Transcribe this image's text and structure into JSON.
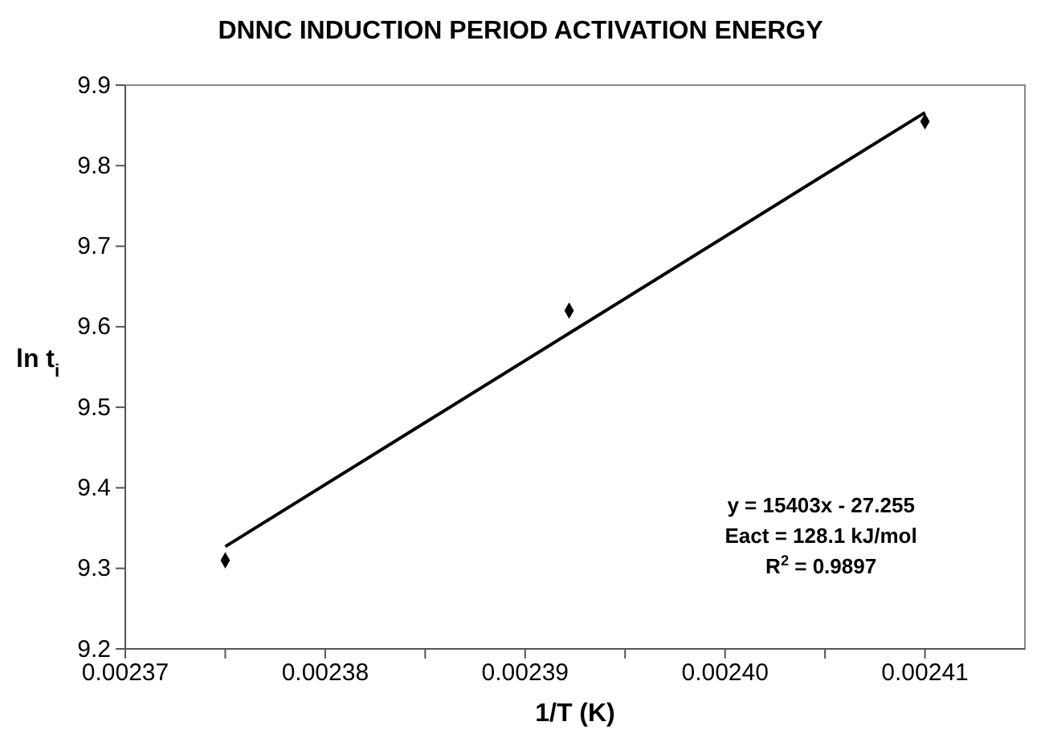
{
  "chart_data": {
    "type": "scatter",
    "title": "DNNC INDUCTION PERIOD ACTIVATION ENERGY",
    "xlabel": "1/T (K)",
    "ylabel": "ln t$_{i}$",
    "series": [
      {
        "type": "scatter",
        "color": "#000000",
        "marker": "diamond",
        "x": [
          0.002375,
          0.0023922,
          0.00241
        ],
        "values": [
          9.31,
          9.62,
          9.855
        ]
      },
      {
        "type": "line",
        "color": "#000000",
        "marker": "none",
        "x": [
          0.002375,
          0.00241
        ],
        "values": [
          9.327,
          9.866
        ]
      }
    ],
    "xlim": [
      0.00237,
      0.002415
    ],
    "xticks": [
      {
        "value": 0.00237,
        "label": "0.00237"
      },
      {
        "value": 0.002375,
        "label": null
      },
      {
        "value": 0.00238,
        "label": "0.00238"
      },
      {
        "value": 0.002385,
        "label": null
      },
      {
        "value": 0.00239,
        "label": "0.00239"
      },
      {
        "value": 0.002395,
        "label": null
      },
      {
        "value": 0.0024,
        "label": "0.00240"
      },
      {
        "value": 0.002405,
        "label": null
      },
      {
        "value": 0.00241,
        "label": "0.00241"
      }
    ],
    "ylim": [
      9.2,
      9.9
    ],
    "yticks": [
      {
        "value": 9.2,
        "label": "9.2"
      },
      {
        "value": 9.3,
        "label": "9.3"
      },
      {
        "value": 9.4,
        "label": "9.4"
      },
      {
        "value": 9.5,
        "label": "9.5"
      },
      {
        "value": 9.6,
        "label": "9.6"
      },
      {
        "value": 9.7,
        "label": "9.7"
      },
      {
        "value": 9.8,
        "label": "9.8"
      },
      {
        "value": 9.9,
        "label": "9.9"
      }
    ],
    "grid": false,
    "annotations": [
      "y = 15403x - 27.255",
      "Eact = 128.1 kJ/mol",
      "R$^{2}$ = 0.9897"
    ]
  }
}
